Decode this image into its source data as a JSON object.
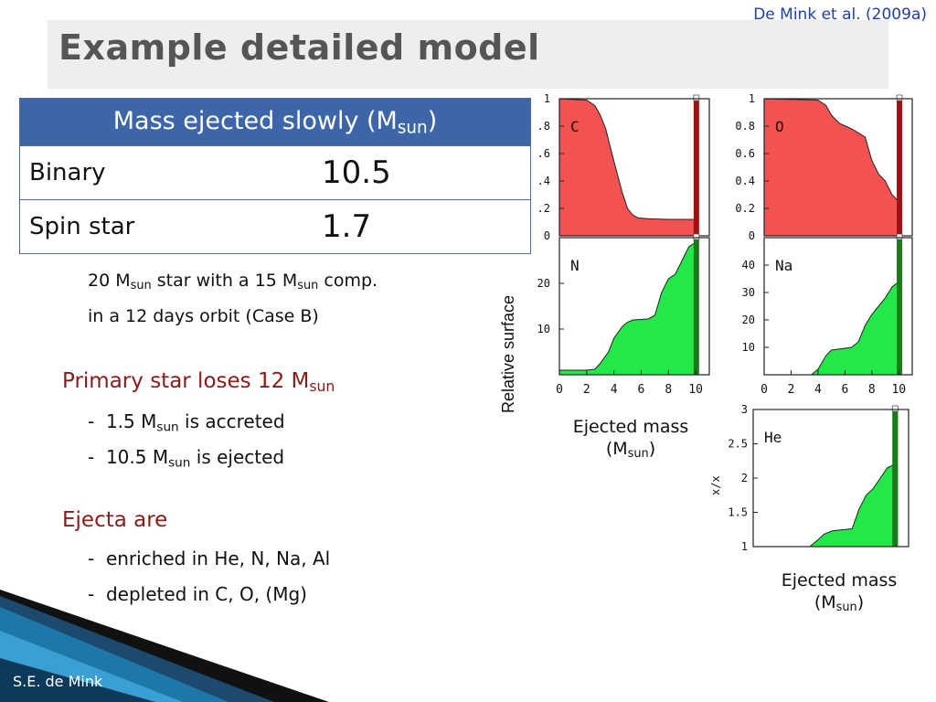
{
  "citation": "De Mink et al. (2009a)",
  "title": "Example detailed model",
  "table": {
    "header_main": "Mass ejected slowly (M",
    "header_sub": "sun",
    "header_close": ")",
    "rows": [
      {
        "label": "Binary",
        "value": "10.5"
      },
      {
        "label": "Spin star",
        "value": "1.7"
      }
    ]
  },
  "setup": {
    "line1_a": "20 M",
    "line1_sub1": "sun",
    "line1_b": " star with a 15 M",
    "line1_sub2": "sun",
    "line1_c": " comp.",
    "line2": "in a 12 days orbit (Case B)"
  },
  "section_loss": {
    "head_a": "Primary star loses 12 M",
    "head_sub": "sun",
    "items": [
      {
        "dash": "-",
        "a": "1.5 M",
        "sub": "sun",
        "b": " is accreted"
      },
      {
        "dash": "-",
        "a": "10.5 M",
        "sub": "sun",
        "b": " is ejected"
      }
    ]
  },
  "section_ejecta": {
    "head": "Ejecta are",
    "items": [
      {
        "dash": "-",
        "text": "enriched in He, N, Na, Al"
      },
      {
        "dash": "-",
        "text": "depleted in C, O, (Mg)"
      }
    ]
  },
  "footer": "S.E. de Mink",
  "plot_axis": {
    "ylabel": "Relative surface",
    "ylabel_he": "x/x",
    "ej_label_a": "Ejected mass",
    "ej_label_b_open": "(M",
    "ej_label_b_sub": "sun",
    "ej_label_b_close": ")"
  },
  "colors": {
    "red_fill": "#f25252",
    "green_fill": "#22e84a",
    "dark_red": "#a01010",
    "dark_green": "#1a7a1a",
    "header_blue": "#3d66a8"
  },
  "chart_data": [
    {
      "type": "area",
      "label": "C",
      "xlim": [
        0,
        10
      ],
      "ylim": [
        0,
        1
      ],
      "yticks": [
        0,
        0.2,
        0.4,
        0.6,
        0.8,
        1
      ],
      "ytick_labels": [
        "0",
        ".2",
        ".4",
        ".6",
        ".8",
        "1"
      ],
      "x": [
        0,
        2,
        2.6,
        3.0,
        3.4,
        3.8,
        4.2,
        4.6,
        5.0,
        5.4,
        5.8,
        6.5,
        8,
        10
      ],
      "y": [
        1,
        0.99,
        0.95,
        0.88,
        0.78,
        0.62,
        0.47,
        0.32,
        0.2,
        0.15,
        0.13,
        0.125,
        0.12,
        0.12
      ]
    },
    {
      "type": "area",
      "label": "O",
      "xlim": [
        0,
        10
      ],
      "ylim": [
        0,
        1
      ],
      "yticks": [
        0,
        0.2,
        0.4,
        0.6,
        0.8,
        1
      ],
      "ytick_labels": [
        "0",
        "0.2",
        "0.4",
        "0.6",
        "0.8",
        "1"
      ],
      "x": [
        0,
        4,
        4.6,
        5.0,
        5.6,
        6.5,
        7.5,
        8.0,
        8.5,
        9.0,
        9.5,
        10
      ],
      "y": [
        1,
        0.99,
        0.95,
        0.88,
        0.82,
        0.78,
        0.72,
        0.55,
        0.45,
        0.4,
        0.3,
        0.25
      ]
    },
    {
      "type": "area",
      "label": "N",
      "xlim": [
        0,
        10
      ],
      "ylim": [
        0,
        30
      ],
      "yticks": [
        0,
        10,
        20
      ],
      "ytick_labels": [
        "",
        "10",
        "20"
      ],
      "xticks": [
        0,
        2,
        4,
        6,
        8,
        10
      ],
      "xtick_labels": [
        "0",
        "2",
        "4",
        "6",
        "8",
        "10"
      ],
      "x": [
        0,
        2,
        2.6,
        3.0,
        3.6,
        4.0,
        4.6,
        5.0,
        5.4,
        6.5,
        7.0,
        7.5,
        8.0,
        8.5,
        9.0,
        9.5,
        10
      ],
      "y": [
        1,
        1,
        1.2,
        2.5,
        5,
        8,
        10.5,
        11.5,
        12,
        12.2,
        13,
        18,
        21,
        22,
        25,
        28,
        29
      ]
    },
    {
      "type": "area",
      "label": "Na",
      "xlim": [
        0,
        10
      ],
      "ylim": [
        0,
        50
      ],
      "yticks": [
        10,
        20,
        30,
        40
      ],
      "ytick_labels": [
        "10",
        "20",
        "30",
        "40"
      ],
      "xticks": [
        0,
        2,
        4,
        6,
        8,
        10
      ],
      "xtick_labels": [
        "0",
        "2",
        "4",
        "6",
        "8",
        "10"
      ],
      "x": [
        0,
        3.5,
        4.0,
        4.6,
        5.0,
        6.5,
        7.0,
        7.5,
        8.0,
        8.5,
        9.0,
        9.5,
        10
      ],
      "y": [
        0,
        0,
        2,
        7,
        9,
        10,
        12,
        18,
        22,
        25,
        28,
        32,
        34
      ]
    },
    {
      "type": "area",
      "label": "He",
      "xlim": [
        0,
        10
      ],
      "ylim": [
        1,
        3
      ],
      "yticks": [
        1,
        1.5,
        2,
        2.5,
        3
      ],
      "ytick_labels": [
        "1",
        "1.5",
        "2",
        "2.5",
        "3"
      ],
      "x": [
        0,
        4,
        4.6,
        5.0,
        5.6,
        7.0,
        7.5,
        8.0,
        8.5,
        9.0,
        9.5,
        10
      ],
      "y": [
        1,
        1,
        1.1,
        1.18,
        1.23,
        1.26,
        1.55,
        1.75,
        1.85,
        2.0,
        2.15,
        2.2
      ]
    }
  ]
}
